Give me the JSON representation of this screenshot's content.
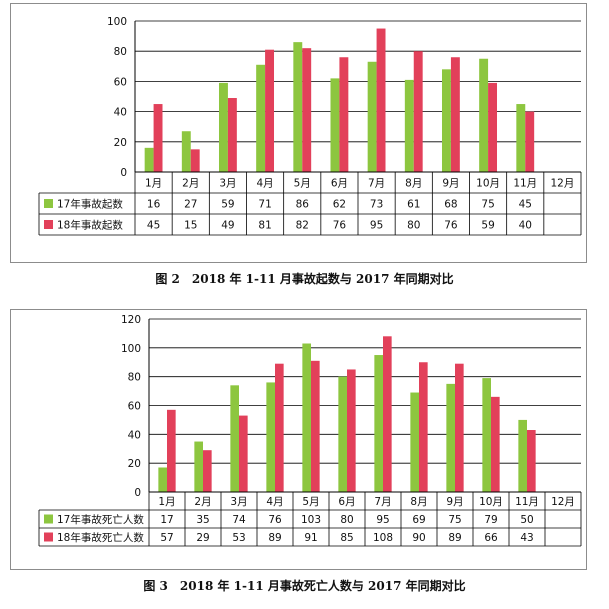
{
  "colors": {
    "series_17": "#8dc63f",
    "series_18": "#e2405a",
    "gridline": "#000000"
  },
  "chart_data": [
    {
      "type": "bar",
      "categories": [
        "1月",
        "2月",
        "3月",
        "4月",
        "5月",
        "6月",
        "7月",
        "8月",
        "9月",
        "10月",
        "11月",
        "12月"
      ],
      "series": [
        {
          "name": "17年事故起数",
          "values": [
            16,
            27,
            59,
            71,
            86,
            62,
            73,
            61,
            68,
            75,
            45,
            null
          ]
        },
        {
          "name": "18年事故起数",
          "values": [
            45,
            15,
            49,
            81,
            82,
            76,
            95,
            80,
            76,
            59,
            40,
            null
          ]
        }
      ],
      "ylim": [
        0,
        100
      ],
      "yticks": [
        0,
        20,
        40,
        60,
        80,
        100
      ],
      "grid": true,
      "data_table": true,
      "caption": "图 2　2018 年 1-11 月事故起数与 2017 年同期对比"
    },
    {
      "type": "bar",
      "categories": [
        "1月",
        "2月",
        "3月",
        "4月",
        "5月",
        "6月",
        "7月",
        "8月",
        "9月",
        "10月",
        "11月",
        "12月"
      ],
      "series": [
        {
          "name": "17年事故死亡人数",
          "values": [
            17,
            35,
            74,
            76,
            103,
            80,
            95,
            69,
            75,
            79,
            50,
            null
          ]
        },
        {
          "name": "18年事故死亡人数",
          "values": [
            57,
            29,
            53,
            89,
            91,
            85,
            108,
            90,
            89,
            66,
            43,
            null
          ]
        }
      ],
      "ylim": [
        0,
        120
      ],
      "yticks": [
        0,
        20,
        40,
        60,
        80,
        100,
        120
      ],
      "grid": true,
      "data_table": true,
      "caption": "图 3　2018 年 1-11 月事故死亡人数与 2017 年同期对比"
    }
  ]
}
